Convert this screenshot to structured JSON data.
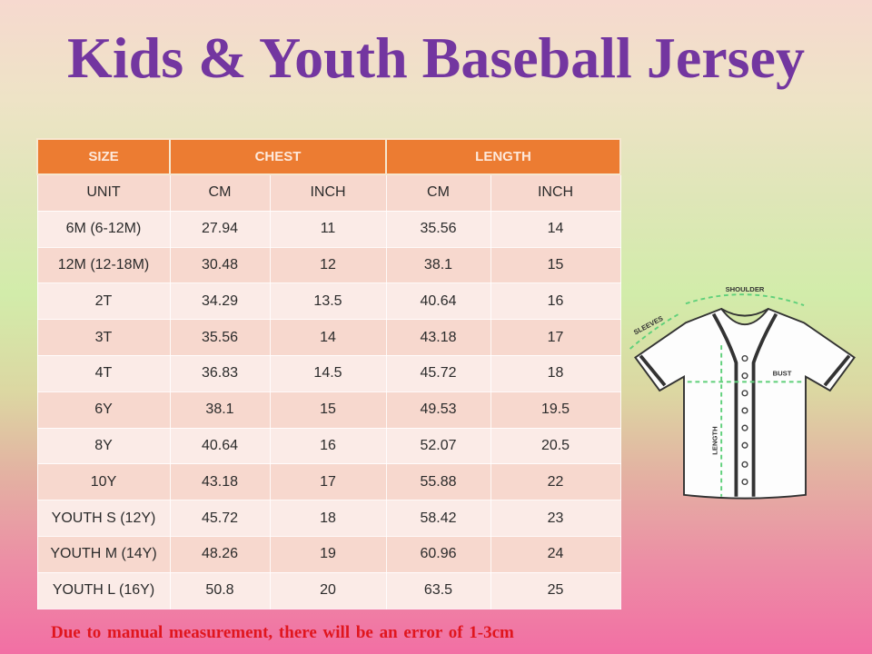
{
  "title": "Kids & Youth Baseball Jersey",
  "table": {
    "header": {
      "size": "SIZE",
      "chest": "CHEST",
      "length": "LENGTH"
    },
    "unit_row": {
      "label": "UNIT",
      "chest_cm": "CM",
      "chest_inch": "INCH",
      "length_cm": "CM",
      "length_inch": "INCH"
    },
    "rows": [
      {
        "size": "6M (6-12M)",
        "chest_cm": "27.94",
        "chest_inch": "11",
        "length_cm": "35.56",
        "length_inch": "14"
      },
      {
        "size": "12M (12-18M)",
        "chest_cm": "30.48",
        "chest_inch": "12",
        "length_cm": "38.1",
        "length_inch": "15"
      },
      {
        "size": "2T",
        "chest_cm": "34.29",
        "chest_inch": "13.5",
        "length_cm": "40.64",
        "length_inch": "16"
      },
      {
        "size": "3T",
        "chest_cm": "35.56",
        "chest_inch": "14",
        "length_cm": "43.18",
        "length_inch": "17"
      },
      {
        "size": "4T",
        "chest_cm": "36.83",
        "chest_inch": "14.5",
        "length_cm": "45.72",
        "length_inch": "18"
      },
      {
        "size": "6Y",
        "chest_cm": "38.1",
        "chest_inch": "15",
        "length_cm": "49.53",
        "length_inch": "19.5"
      },
      {
        "size": "8Y",
        "chest_cm": "40.64",
        "chest_inch": "16",
        "length_cm": "52.07",
        "length_inch": "20.5"
      },
      {
        "size": "10Y",
        "chest_cm": "43.18",
        "chest_inch": "17",
        "length_cm": "55.88",
        "length_inch": "22"
      },
      {
        "size": "YOUTH S (12Y)",
        "chest_cm": "45.72",
        "chest_inch": "18",
        "length_cm": "58.42",
        "length_inch": "23"
      },
      {
        "size": "YOUTH M (14Y)",
        "chest_cm": "48.26",
        "chest_inch": "19",
        "length_cm": "60.96",
        "length_inch": "24"
      },
      {
        "size": "YOUTH L (16Y)",
        "chest_cm": "50.8",
        "chest_inch": "20",
        "length_cm": "63.5",
        "length_inch": "25"
      }
    ]
  },
  "diagram": {
    "labels": {
      "shoulder": "SHOULDER",
      "sleeves": "SLEEVES",
      "bust": "BUST",
      "length": "LENGTH"
    }
  },
  "note": "Due to manual measurement, there will be an error of 1-3cm",
  "colors": {
    "title": "#7336a0",
    "header": "#ec7c32",
    "note": "#e0161e",
    "measure_line": "#5fd07a"
  }
}
